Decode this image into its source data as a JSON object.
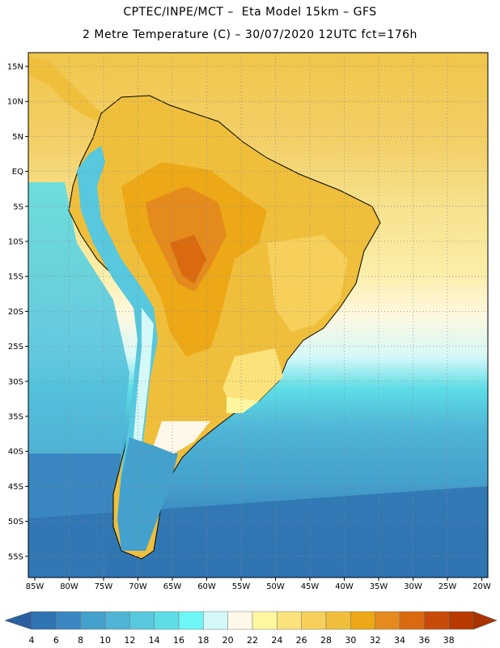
{
  "title_line1": "CPTEC/INPE/MCT –  Eta Model 15km – GFS",
  "title_line2": "2 Metre Temperature (C) – 30/07/2020 12UTC fct=176h",
  "lat_labels": [
    "15N",
    "10N",
    "5N",
    "EQ",
    "5S",
    "10S",
    "15S",
    "20S",
    "25S",
    "30S",
    "35S",
    "40S",
    "45S",
    "50S",
    "55S"
  ],
  "lon_labels": [
    "85W",
    "80W",
    "75W",
    "70W",
    "65W",
    "60W",
    "55W",
    "50W",
    "45W",
    "40W",
    "35W",
    "30W",
    "25W",
    "20W"
  ],
  "colorbar": {
    "labels": [
      "4",
      "6",
      "8",
      "10",
      "12",
      "14",
      "16",
      "18",
      "20",
      "22",
      "24",
      "26",
      "28",
      "30",
      "32",
      "34",
      "36",
      "38"
    ],
    "colors": [
      "#2f74b2",
      "#3a86c0",
      "#44a0cc",
      "#4fb4d6",
      "#57c8de",
      "#5edde6",
      "#6ef5f5",
      "#d4f8f8",
      "#fff8e8",
      "#fff6a0",
      "#fbe27a",
      "#f6d05a",
      "#efbf3c",
      "#eca816",
      "#e58a1c",
      "#da6a10",
      "#c84a08",
      "#b83a00"
    ]
  }
}
